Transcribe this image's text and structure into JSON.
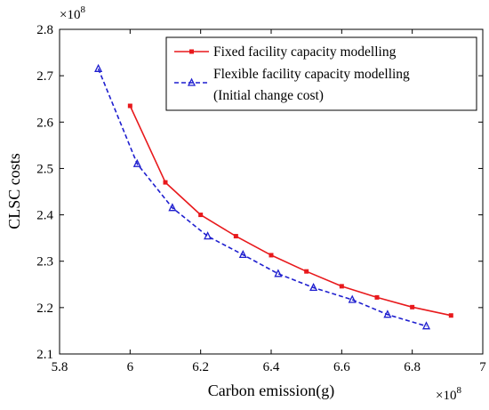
{
  "chart_data": {
    "type": "line",
    "xlabel": "Carbon emission(g)",
    "ylabel": "CLSC costs",
    "x_multiplier": "×10",
    "x_exponent": "8",
    "y_multiplier": "×10",
    "y_exponent": "8",
    "xlim": [
      5.8,
      7.0
    ],
    "ylim": [
      2.1,
      2.8
    ],
    "x_ticks": [
      "5.8",
      "6",
      "6.2",
      "6.4",
      "6.6",
      "6.8",
      "7"
    ],
    "y_ticks": [
      "2.1",
      "2.2",
      "2.3",
      "2.4",
      "2.5",
      "2.6",
      "2.7",
      "2.8"
    ],
    "x_tick_values": [
      5.8,
      6.0,
      6.2,
      6.4,
      6.6,
      6.8,
      7.0
    ],
    "y_tick_values": [
      2.1,
      2.2,
      2.3,
      2.4,
      2.5,
      2.6,
      2.7,
      2.8
    ],
    "grid": false,
    "legend_position": "top-right",
    "legend_lines": [
      [
        "Fixed facility capacity modelling"
      ],
      [
        "Flexible facility capacity modelling",
        "(Initial change cost)"
      ]
    ],
    "series": [
      {
        "name": "Fixed facility capacity modelling",
        "color": "#e8191c",
        "line_style": "solid",
        "marker": "square",
        "x": [
          6.0,
          6.1,
          6.2,
          6.3,
          6.4,
          6.5,
          6.6,
          6.7,
          6.8,
          6.91
        ],
        "y": [
          2.635,
          2.47,
          2.4,
          2.354,
          2.313,
          2.278,
          2.246,
          2.222,
          2.201,
          2.183
        ]
      },
      {
        "name": "Flexible facility capacity modelling (Initial change cost)",
        "color": "#1f1fcf",
        "line_style": "dashed",
        "marker": "triangle",
        "x": [
          5.91,
          6.02,
          6.12,
          6.22,
          6.32,
          6.42,
          6.52,
          6.63,
          6.73,
          6.84
        ],
        "y": [
          2.715,
          2.51,
          2.415,
          2.354,
          2.314,
          2.273,
          2.243,
          2.217,
          2.185,
          2.16
        ]
      }
    ]
  }
}
